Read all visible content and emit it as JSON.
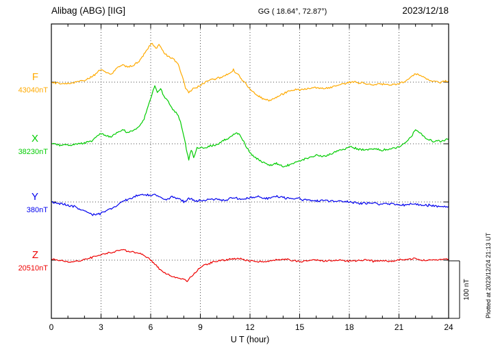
{
  "header": {
    "station": "Alibag (ABG)  [IIG]",
    "coords": "GG ( 18.64°,  72.87°)",
    "date": "2023/12/18"
  },
  "annotations": {
    "plotted_at": "Plotted at 2023/12/24 21:13 UT",
    "scale_label": "100 nT"
  },
  "chart_data": {
    "type": "line",
    "title": "Alibag (ABG) [IIG] magnetogram 2023/12/18",
    "xlabel": "U T (hour)",
    "xlim": [
      0,
      24
    ],
    "x_ticks": [
      0,
      3,
      6,
      9,
      12,
      15,
      18,
      21,
      24
    ],
    "grid": "dotted vertical lines every 3 h; dotted horizontal baseline per channel",
    "legend_position": "left channel labels",
    "scale_bar_nT": 100,
    "series": [
      {
        "name": "F",
        "baseline_label": "43040nT",
        "baseline_nT": 43040,
        "color": "#ffaa00",
        "units": "nT offset from baseline",
        "points": [
          [
            0,
            0
          ],
          [
            0.5,
            -2
          ],
          [
            1,
            -2
          ],
          [
            1.5,
            0
          ],
          [
            2,
            3
          ],
          [
            2.5,
            10
          ],
          [
            2.8,
            18
          ],
          [
            3,
            22
          ],
          [
            3.3,
            16
          ],
          [
            3.6,
            14
          ],
          [
            4,
            26
          ],
          [
            4.3,
            30
          ],
          [
            4.6,
            26
          ],
          [
            5,
            30
          ],
          [
            5.3,
            36
          ],
          [
            5.6,
            48
          ],
          [
            5.9,
            62
          ],
          [
            6.1,
            68
          ],
          [
            6.3,
            58
          ],
          [
            6.5,
            64
          ],
          [
            6.8,
            52
          ],
          [
            7,
            46
          ],
          [
            7.3,
            42
          ],
          [
            7.6,
            34
          ],
          [
            7.9,
            12
          ],
          [
            8.1,
            -10
          ],
          [
            8.3,
            -18
          ],
          [
            8.5,
            -12
          ],
          [
            8.8,
            -8
          ],
          [
            9,
            -6
          ],
          [
            9.3,
            0
          ],
          [
            9.6,
            4
          ],
          [
            10,
            6
          ],
          [
            10.4,
            10
          ],
          [
            10.7,
            14
          ],
          [
            11,
            21
          ],
          [
            11.3,
            12
          ],
          [
            11.6,
            2
          ],
          [
            12,
            -12
          ],
          [
            12.4,
            -22
          ],
          [
            12.8,
            -30
          ],
          [
            13.2,
            -32
          ],
          [
            13.6,
            -26
          ],
          [
            14,
            -20
          ],
          [
            14.5,
            -14
          ],
          [
            15,
            -13
          ],
          [
            15.5,
            -11
          ],
          [
            16,
            -9
          ],
          [
            16.5,
            -11
          ],
          [
            17,
            -8
          ],
          [
            17.5,
            -5
          ],
          [
            18,
            1
          ],
          [
            18.5,
            -1
          ],
          [
            19,
            -3
          ],
          [
            19.5,
            -4
          ],
          [
            20,
            -3
          ],
          [
            20.5,
            -5
          ],
          [
            21,
            -3
          ],
          [
            21.5,
            3
          ],
          [
            22,
            15
          ],
          [
            22.3,
            12
          ],
          [
            22.6,
            6
          ],
          [
            23,
            2
          ],
          [
            23.5,
            0
          ],
          [
            24,
            2
          ]
        ]
      },
      {
        "name": "X",
        "baseline_label": "38230nT",
        "baseline_nT": 38230,
        "color": "#00cc00",
        "units": "nT offset from baseline",
        "points": [
          [
            0,
            0
          ],
          [
            0.5,
            -2
          ],
          [
            1,
            -2
          ],
          [
            1.5,
            -1
          ],
          [
            2,
            2
          ],
          [
            2.5,
            6
          ],
          [
            2.8,
            14
          ],
          [
            3,
            18
          ],
          [
            3.3,
            13
          ],
          [
            3.6,
            12
          ],
          [
            4,
            20
          ],
          [
            4.3,
            24
          ],
          [
            4.6,
            20
          ],
          [
            5,
            24
          ],
          [
            5.3,
            30
          ],
          [
            5.6,
            44
          ],
          [
            5.9,
            70
          ],
          [
            6.1,
            88
          ],
          [
            6.25,
            102
          ],
          [
            6.4,
            90
          ],
          [
            6.6,
            96
          ],
          [
            6.8,
            82
          ],
          [
            7,
            76
          ],
          [
            7.2,
            64
          ],
          [
            7.4,
            58
          ],
          [
            7.6,
            52
          ],
          [
            7.8,
            38
          ],
          [
            8,
            14
          ],
          [
            8.15,
            -8
          ],
          [
            8.3,
            -28
          ],
          [
            8.45,
            -10
          ],
          [
            8.6,
            -24
          ],
          [
            8.8,
            -8
          ],
          [
            9,
            -6
          ],
          [
            9.3,
            -6
          ],
          [
            9.6,
            -4
          ],
          [
            10,
            -2
          ],
          [
            10.4,
            6
          ],
          [
            10.7,
            10
          ],
          [
            11,
            16
          ],
          [
            11.2,
            20
          ],
          [
            11.5,
            10
          ],
          [
            12,
            -16
          ],
          [
            12.4,
            -26
          ],
          [
            12.8,
            -32
          ],
          [
            13.2,
            -38
          ],
          [
            13.6,
            -34
          ],
          [
            14,
            -40
          ],
          [
            14.4,
            -36
          ],
          [
            14.8,
            -32
          ],
          [
            15.2,
            -28
          ],
          [
            15.6,
            -24
          ],
          [
            16,
            -20
          ],
          [
            16.5,
            -22
          ],
          [
            17,
            -16
          ],
          [
            17.5,
            -11
          ],
          [
            18,
            -6
          ],
          [
            18.5,
            -9
          ],
          [
            19,
            -11
          ],
          [
            19.5,
            -9
          ],
          [
            20,
            -11
          ],
          [
            20.5,
            -9
          ],
          [
            21,
            -6
          ],
          [
            21.5,
            4
          ],
          [
            22,
            24
          ],
          [
            22.3,
            18
          ],
          [
            22.6,
            10
          ],
          [
            23,
            5
          ],
          [
            23.5,
            4
          ],
          [
            24,
            8
          ]
        ]
      },
      {
        "name": "Y",
        "baseline_label": "380nT",
        "baseline_nT": 380,
        "color": "#0000ee",
        "units": "nT offset from baseline",
        "points": [
          [
            0,
            0
          ],
          [
            0.5,
            -3
          ],
          [
            1,
            -5
          ],
          [
            1.5,
            -9
          ],
          [
            2,
            -16
          ],
          [
            2.5,
            -22
          ],
          [
            3,
            -20
          ],
          [
            3.5,
            -13
          ],
          [
            4,
            -6
          ],
          [
            4.5,
            3
          ],
          [
            5,
            9
          ],
          [
            5.5,
            14
          ],
          [
            6,
            11
          ],
          [
            6.3,
            14
          ],
          [
            6.6,
            7
          ],
          [
            7,
            4
          ],
          [
            7.3,
            9
          ],
          [
            7.6,
            6
          ],
          [
            8,
            1
          ],
          [
            8.3,
            7
          ],
          [
            8.6,
            3
          ],
          [
            9,
            2
          ],
          [
            9.5,
            4
          ],
          [
            10,
            5
          ],
          [
            10.5,
            3
          ],
          [
            11,
            8
          ],
          [
            11.5,
            5
          ],
          [
            12,
            7
          ],
          [
            12.5,
            9
          ],
          [
            13,
            6
          ],
          [
            13.5,
            10
          ],
          [
            14,
            8
          ],
          [
            14.5,
            5
          ],
          [
            15,
            5
          ],
          [
            15.5,
            3
          ],
          [
            16,
            2
          ],
          [
            16.5,
            3
          ],
          [
            17,
            2
          ],
          [
            17.5,
            1
          ],
          [
            18,
            0
          ],
          [
            18.5,
            -2
          ],
          [
            19,
            -2
          ],
          [
            19.5,
            -3
          ],
          [
            20,
            -3
          ],
          [
            20.5,
            -4
          ],
          [
            21,
            -5
          ],
          [
            21.5,
            -5
          ],
          [
            22,
            -4
          ],
          [
            22.5,
            -6
          ],
          [
            23,
            -6
          ],
          [
            23.5,
            -8
          ],
          [
            24,
            -8
          ]
        ]
      },
      {
        "name": "Z",
        "baseline_label": "20510nT",
        "baseline_nT": 20510,
        "color": "#ee0000",
        "units": "nT offset from baseline",
        "points": [
          [
            0,
            2
          ],
          [
            0.5,
            0
          ],
          [
            1,
            -3
          ],
          [
            1.5,
            -2
          ],
          [
            2,
            1
          ],
          [
            2.5,
            5
          ],
          [
            3,
            9
          ],
          [
            3.5,
            13
          ],
          [
            4,
            16
          ],
          [
            4.3,
            18
          ],
          [
            4.6,
            16
          ],
          [
            5,
            14
          ],
          [
            5.5,
            10
          ],
          [
            6,
            1
          ],
          [
            6.4,
            -12
          ],
          [
            6.8,
            -22
          ],
          [
            7.2,
            -27
          ],
          [
            7.6,
            -31
          ],
          [
            8,
            -33
          ],
          [
            8.2,
            -36
          ],
          [
            8.4,
            -30
          ],
          [
            8.7,
            -22
          ],
          [
            9,
            -12
          ],
          [
            9.4,
            -7
          ],
          [
            9.8,
            -3
          ],
          [
            10.2,
            -1
          ],
          [
            10.6,
            1
          ],
          [
            11,
            3
          ],
          [
            11.5,
            2
          ],
          [
            12,
            -1
          ],
          [
            12.5,
            -3
          ],
          [
            13,
            -2
          ],
          [
            13.5,
            0
          ],
          [
            14,
            2
          ],
          [
            14.5,
            0
          ],
          [
            15,
            -2
          ],
          [
            15.5,
            -1
          ],
          [
            16,
            0
          ],
          [
            16.5,
            -2
          ],
          [
            17,
            -1
          ],
          [
            17.5,
            0
          ],
          [
            18,
            -2
          ],
          [
            18.5,
            -1
          ],
          [
            19,
            0
          ],
          [
            19.5,
            -2
          ],
          [
            20,
            -1
          ],
          [
            20.5,
            -2
          ],
          [
            21,
            0
          ],
          [
            21.5,
            2
          ],
          [
            22,
            3
          ],
          [
            22.5,
            0
          ],
          [
            23,
            0
          ],
          [
            23.5,
            1
          ],
          [
            24,
            2
          ]
        ]
      }
    ]
  }
}
